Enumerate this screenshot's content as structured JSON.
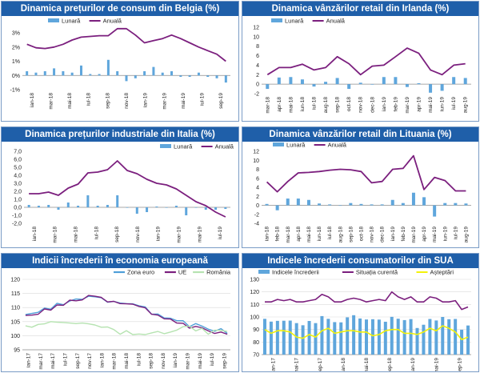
{
  "colors": {
    "title_bg": "#1f5fa9",
    "bar": "#5fa6dc",
    "annual": "#7b1f7e",
    "zona_euro": "#4f9fd8",
    "ue": "#7b1f7e",
    "romania": "#b6e3b1",
    "indice": "#5fa6dc",
    "situatie": "#7b1f7e",
    "asteptari": "#f3f20a",
    "grid": "#d9d9d9",
    "text": "#222222"
  },
  "chart_data": [
    {
      "type": "bar+line",
      "title": "Dinamica prețurilor de consum din Belgia (%)",
      "legend": [
        "Lunară",
        "Anuală"
      ],
      "y_ticks": [
        "-1%",
        "0%",
        "1%",
        "2%",
        "3%"
      ],
      "ylim": [
        -1,
        3.4
      ],
      "x_tick_labels": [
        "ian-18",
        "mar-18",
        "mai-18",
        "iul-18",
        "sep-18",
        "nov-18",
        "ian-19",
        "mar-19",
        "mai-19",
        "iul-19",
        "sep-19"
      ],
      "series": [
        {
          "name": "Lunară",
          "kind": "bar",
          "values": [
            0.3,
            0.2,
            0.3,
            0.5,
            0.3,
            0.2,
            0.7,
            0.1,
            0.1,
            1.1,
            0.3,
            -0.4,
            -0.2,
            0.3,
            0.6,
            0.2,
            0.3,
            -0.1,
            -0.1,
            0.2,
            -0.1,
            -0.2,
            -0.5
          ]
        },
        {
          "name": "Anuală",
          "kind": "line",
          "values": [
            2.2,
            1.95,
            1.9,
            2.0,
            2.2,
            2.5,
            2.7,
            2.75,
            2.8,
            2.8,
            3.3,
            3.3,
            2.85,
            2.3,
            2.45,
            2.6,
            2.85,
            2.6,
            2.3,
            2.0,
            1.75,
            1.5,
            1.0
          ]
        }
      ]
    },
    {
      "type": "bar+line",
      "title": "Dinamica vânzărilor retail din Irlanda (%)",
      "legend": [
        "Lunară",
        "Anuală"
      ],
      "y_ticks": [
        "-2",
        "0",
        "2",
        "4",
        "6",
        "8",
        "10",
        "12"
      ],
      "ylim": [
        -2,
        12
      ],
      "x_tick_labels": [
        "mar-18",
        "apr-18",
        "mai-18",
        "iun-18",
        "iul-18",
        "aug-18",
        "sep-18",
        "oct-18",
        "nov-18",
        "dec-18",
        "ian-19",
        "feb-19",
        "mar-19",
        "apr-19",
        "mai-19",
        "iun-19",
        "iul-19",
        "aug-19"
      ],
      "series": [
        {
          "name": "Lunară",
          "kind": "bar",
          "values": [
            -1.0,
            1.4,
            1.5,
            1.0,
            -0.5,
            0.5,
            1.3,
            -1.0,
            0.3,
            0.0,
            1.5,
            1.5,
            -0.6,
            0.2,
            -1.8,
            -1.4,
            1.5,
            1.3
          ]
        },
        {
          "name": "Anuală",
          "kind": "line",
          "values": [
            2.0,
            3.5,
            3.5,
            4.2,
            3.0,
            3.5,
            5.8,
            4.3,
            2.0,
            3.8,
            4.0,
            5.8,
            7.6,
            6.5,
            3.0,
            2.0,
            4.0,
            4.3
          ]
        }
      ]
    },
    {
      "type": "bar+line",
      "title": "Dinamica prețurilor industriale din Italia (%)",
      "legend": [
        "Lunară",
        "Anuală"
      ],
      "y_ticks": [
        "-2,0",
        "-1,0",
        "0,0",
        "1,0",
        "2,0",
        "3,0",
        "4,0",
        "5,0",
        "6,0",
        "7,0"
      ],
      "ylim": [
        -2,
        7
      ],
      "x_tick_labels": [
        "ian-18",
        "mar-18",
        "mai-18",
        "iul-18",
        "sep-18",
        "nov-18",
        "ian-19",
        "mar-19",
        "mai-19",
        "iul-19"
      ],
      "series": [
        {
          "name": "Lunară",
          "kind": "bar",
          "values": [
            0.3,
            0.2,
            0.3,
            -0.3,
            0.6,
            0.2,
            1.5,
            0.2,
            0.3,
            1.5,
            0.0,
            -0.8,
            -0.6,
            0.1,
            0.0,
            0.2,
            -1.0,
            0.0,
            -0.3,
            -0.3,
            -0.2
          ]
        },
        {
          "name": "Anuală",
          "kind": "line",
          "values": [
            1.7,
            1.7,
            1.9,
            1.5,
            2.4,
            2.9,
            4.3,
            4.4,
            4.7,
            5.8,
            4.6,
            4.2,
            3.5,
            3.0,
            2.8,
            2.3,
            1.5,
            0.7,
            0.2,
            -0.6,
            -1.2
          ]
        }
      ]
    },
    {
      "type": "bar+line",
      "title": "Dinamica vânzărilor retail din Lituania (%)",
      "legend": [
        "Lunară",
        "Anuală"
      ],
      "y_ticks": [
        "-4",
        "-2",
        "0",
        "2",
        "4",
        "6",
        "8",
        "10",
        "12"
      ],
      "ylim": [
        -4,
        12
      ],
      "x_tick_labels": [
        "ian-18",
        "feb-18",
        "mar-18",
        "apr-18",
        "mai-18",
        "iun-18",
        "iul-18",
        "aug-18",
        "sep-18",
        "oct-18",
        "nov-18",
        "dec-18",
        "ian-19",
        "feb-19",
        "mar-19",
        "apr-19",
        "mai-19",
        "iun-19",
        "iul-19",
        "aug-19"
      ],
      "series": [
        {
          "name": "Lunară",
          "kind": "bar",
          "values": [
            0.3,
            -1.1,
            1.5,
            1.5,
            1.2,
            0.4,
            0.2,
            0.0,
            0.5,
            0.3,
            0.2,
            0.2,
            1.2,
            0.5,
            2.8,
            1.8,
            -2.5,
            0.5,
            0.5,
            0.4
          ]
        },
        {
          "name": "Anuală",
          "kind": "line",
          "values": [
            5.2,
            3.0,
            5.3,
            7.2,
            7.3,
            7.5,
            7.8,
            8.0,
            7.9,
            7.5,
            5.0,
            5.3,
            8.0,
            8.2,
            11.0,
            3.5,
            6.2,
            5.5,
            3.2,
            3.2
          ]
        }
      ]
    },
    {
      "type": "line",
      "title": "Indicii încrederii în economia europeană",
      "legend": [
        "Zona euro",
        "UE",
        "România"
      ],
      "y_ticks": [
        "95",
        "100",
        "105",
        "110",
        "115",
        "120"
      ],
      "ylim": [
        95,
        120
      ],
      "x_tick_labels": [
        "ian-17",
        "mar-17",
        "mai-17",
        "iul-17",
        "sep-17",
        "nov-17",
        "ian-18",
        "mar-18",
        "mai-18",
        "iul-18",
        "sep-18",
        "nov-18",
        "ian-19",
        "mar-19",
        "mai-19",
        "iul-19",
        "sep-19"
      ],
      "series": [
        {
          "name": "Zona euro",
          "values": [
            107.5,
            107.9,
            108.3,
            109.8,
            109.4,
            111.5,
            111.0,
            112.3,
            113.0,
            112.9,
            114.0,
            113.8,
            113.5,
            111.9,
            112.2,
            111.6,
            111.4,
            111.3,
            110.6,
            110.2,
            107.6,
            107.7,
            106.3,
            106.2,
            105.3,
            105.3,
            103.2,
            104.3,
            103.4,
            102.3,
            101.6,
            102.5,
            100.8
          ]
        },
        {
          "name": "UE",
          "values": [
            107.2,
            107.3,
            107.6,
            109.5,
            109.1,
            110.9,
            110.8,
            112.6,
            112.4,
            112.7,
            114.3,
            114.0,
            113.6,
            112.0,
            112.2,
            111.4,
            111.3,
            111.2,
            110.4,
            109.9,
            107.6,
            107.3,
            106.0,
            105.9,
            104.5,
            104.4,
            102.7,
            103.3,
            102.8,
            101.7,
            100.8,
            101.3,
            100.5
          ]
        },
        {
          "name": "România",
          "values": [
            103.5,
            103.0,
            104.0,
            104.2,
            105.0,
            104.8,
            104.7,
            104.5,
            104.3,
            104.5,
            104.2,
            103.8,
            103.0,
            103.1,
            102.2,
            100.5,
            101.8,
            100.4,
            100.6,
            100.4,
            101.0,
            101.5,
            100.7,
            101.3,
            102.0,
            103.2,
            103.4,
            101.7,
            102.6,
            100.5,
            102.0,
            101.9,
            101.5
          ]
        }
      ]
    },
    {
      "type": "bar+line",
      "title": "Indicele încrederii consumatorilor din SUA",
      "legend": [
        "Indicele încrederii",
        "Situația curentă",
        "Așteptări"
      ],
      "y_ticks": [
        "70",
        "80",
        "90",
        "100",
        "110",
        "120",
        "130"
      ],
      "ylim": [
        70,
        130
      ],
      "x_tick_labels": [
        "ian-17",
        "mai-17",
        "sep-17",
        "ian-18",
        "mai-18",
        "sep-18",
        "ian-19",
        "mai-19",
        "sep-19"
      ],
      "series": [
        {
          "name": "Indicele încrederii",
          "kind": "bar",
          "values": [
            98.5,
            96.3,
            96.9,
            97.0,
            97.1,
            95.1,
            93.4,
            96.8,
            95.1,
            100.7,
            98.5,
            95.9,
            95.7,
            99.7,
            101.4,
            98.8,
            98.0,
            98.2,
            97.9,
            96.2,
            100.1,
            98.6,
            97.5,
            98.3,
            91.2,
            93.8,
            98.4,
            97.2,
            100.0,
            98.2,
            98.4,
            89.8,
            93.2
          ]
        },
        {
          "name": "Situația curentă",
          "kind": "line",
          "values": [
            112,
            112,
            114,
            113,
            114,
            112,
            112,
            113,
            114,
            118,
            116,
            112,
            112,
            114,
            115,
            114,
            112,
            113,
            114,
            113,
            120,
            116,
            114,
            116,
            112,
            112,
            116,
            115,
            112,
            112,
            113,
            106,
            108
          ]
        },
        {
          "name": "Așteptări",
          "kind": "line",
          "values": [
            90,
            87,
            89,
            89,
            88,
            84,
            83,
            86,
            84,
            89,
            91,
            87,
            88,
            89,
            89,
            88,
            88,
            85,
            86,
            89,
            90,
            90,
            87,
            87,
            86,
            88,
            91,
            89,
            93,
            91,
            88,
            82,
            84
          ]
        }
      ]
    }
  ]
}
